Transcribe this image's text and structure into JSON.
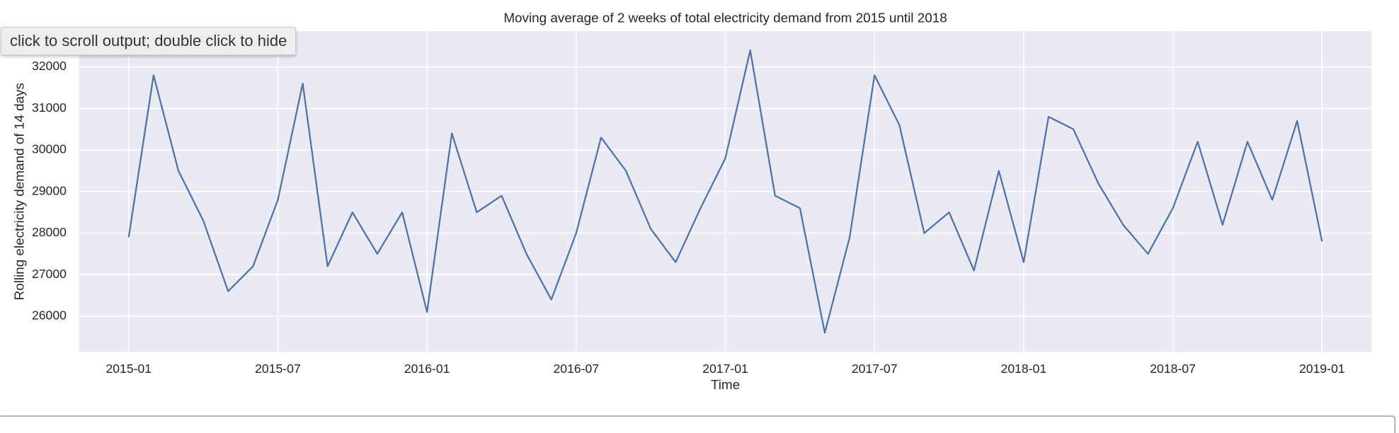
{
  "ui": {
    "tooltip": "click to scroll output; double click to hide"
  },
  "chart_data": {
    "type": "line",
    "title": "Moving average of 2 weeks of total electricity demand from 2015 until 2018",
    "x_label": "Time",
    "y_label": "Rolling electricity demand of 14 days",
    "x": [
      "2015-01",
      "2015-02",
      "2015-03",
      "2015-04",
      "2015-05",
      "2015-06",
      "2015-07",
      "2015-08",
      "2015-09",
      "2015-10",
      "2015-11",
      "2015-12",
      "2016-01",
      "2016-02",
      "2016-03",
      "2016-04",
      "2016-05",
      "2016-06",
      "2016-07",
      "2016-08",
      "2016-09",
      "2016-10",
      "2016-11",
      "2016-12",
      "2017-01",
      "2017-02",
      "2017-03",
      "2017-04",
      "2017-05",
      "2017-06",
      "2017-07",
      "2017-08",
      "2017-09",
      "2017-10",
      "2017-11",
      "2017-12",
      "2018-01",
      "2018-02",
      "2018-03",
      "2018-04",
      "2018-05",
      "2018-06",
      "2018-07",
      "2018-08",
      "2018-09",
      "2018-10",
      "2018-11",
      "2018-12",
      "2019-01"
    ],
    "series": [
      {
        "name": "Rolling electricity demand",
        "color": "#4c72b0",
        "values": [
          27900,
          31800,
          29500,
          28300,
          26600,
          27200,
          28800,
          31600,
          27200,
          28500,
          27500,
          28500,
          26100,
          30400,
          28500,
          28900,
          27500,
          26400,
          28000,
          30300,
          29500,
          28100,
          27300,
          28600,
          29800,
          32400,
          28900,
          28600,
          25600,
          27900,
          31800,
          30600,
          28000,
          28500,
          27100,
          29500,
          27300,
          30800,
          30500,
          29200,
          28200,
          27500,
          28600,
          30200,
          28200,
          30200,
          28800,
          30700,
          27800
        ]
      }
    ],
    "xlim": [
      "2014-11",
      "2019-03"
    ],
    "xticks": [
      "2015-01",
      "2015-07",
      "2016-01",
      "2016-07",
      "2017-01",
      "2017-07",
      "2018-01",
      "2018-07",
      "2019-01"
    ],
    "ylim": [
      25140,
      32860
    ],
    "yticks": [
      26000,
      27000,
      28000,
      29000,
      30000,
      31000,
      32000
    ],
    "grid": true,
    "background": "#eaeaf2"
  }
}
